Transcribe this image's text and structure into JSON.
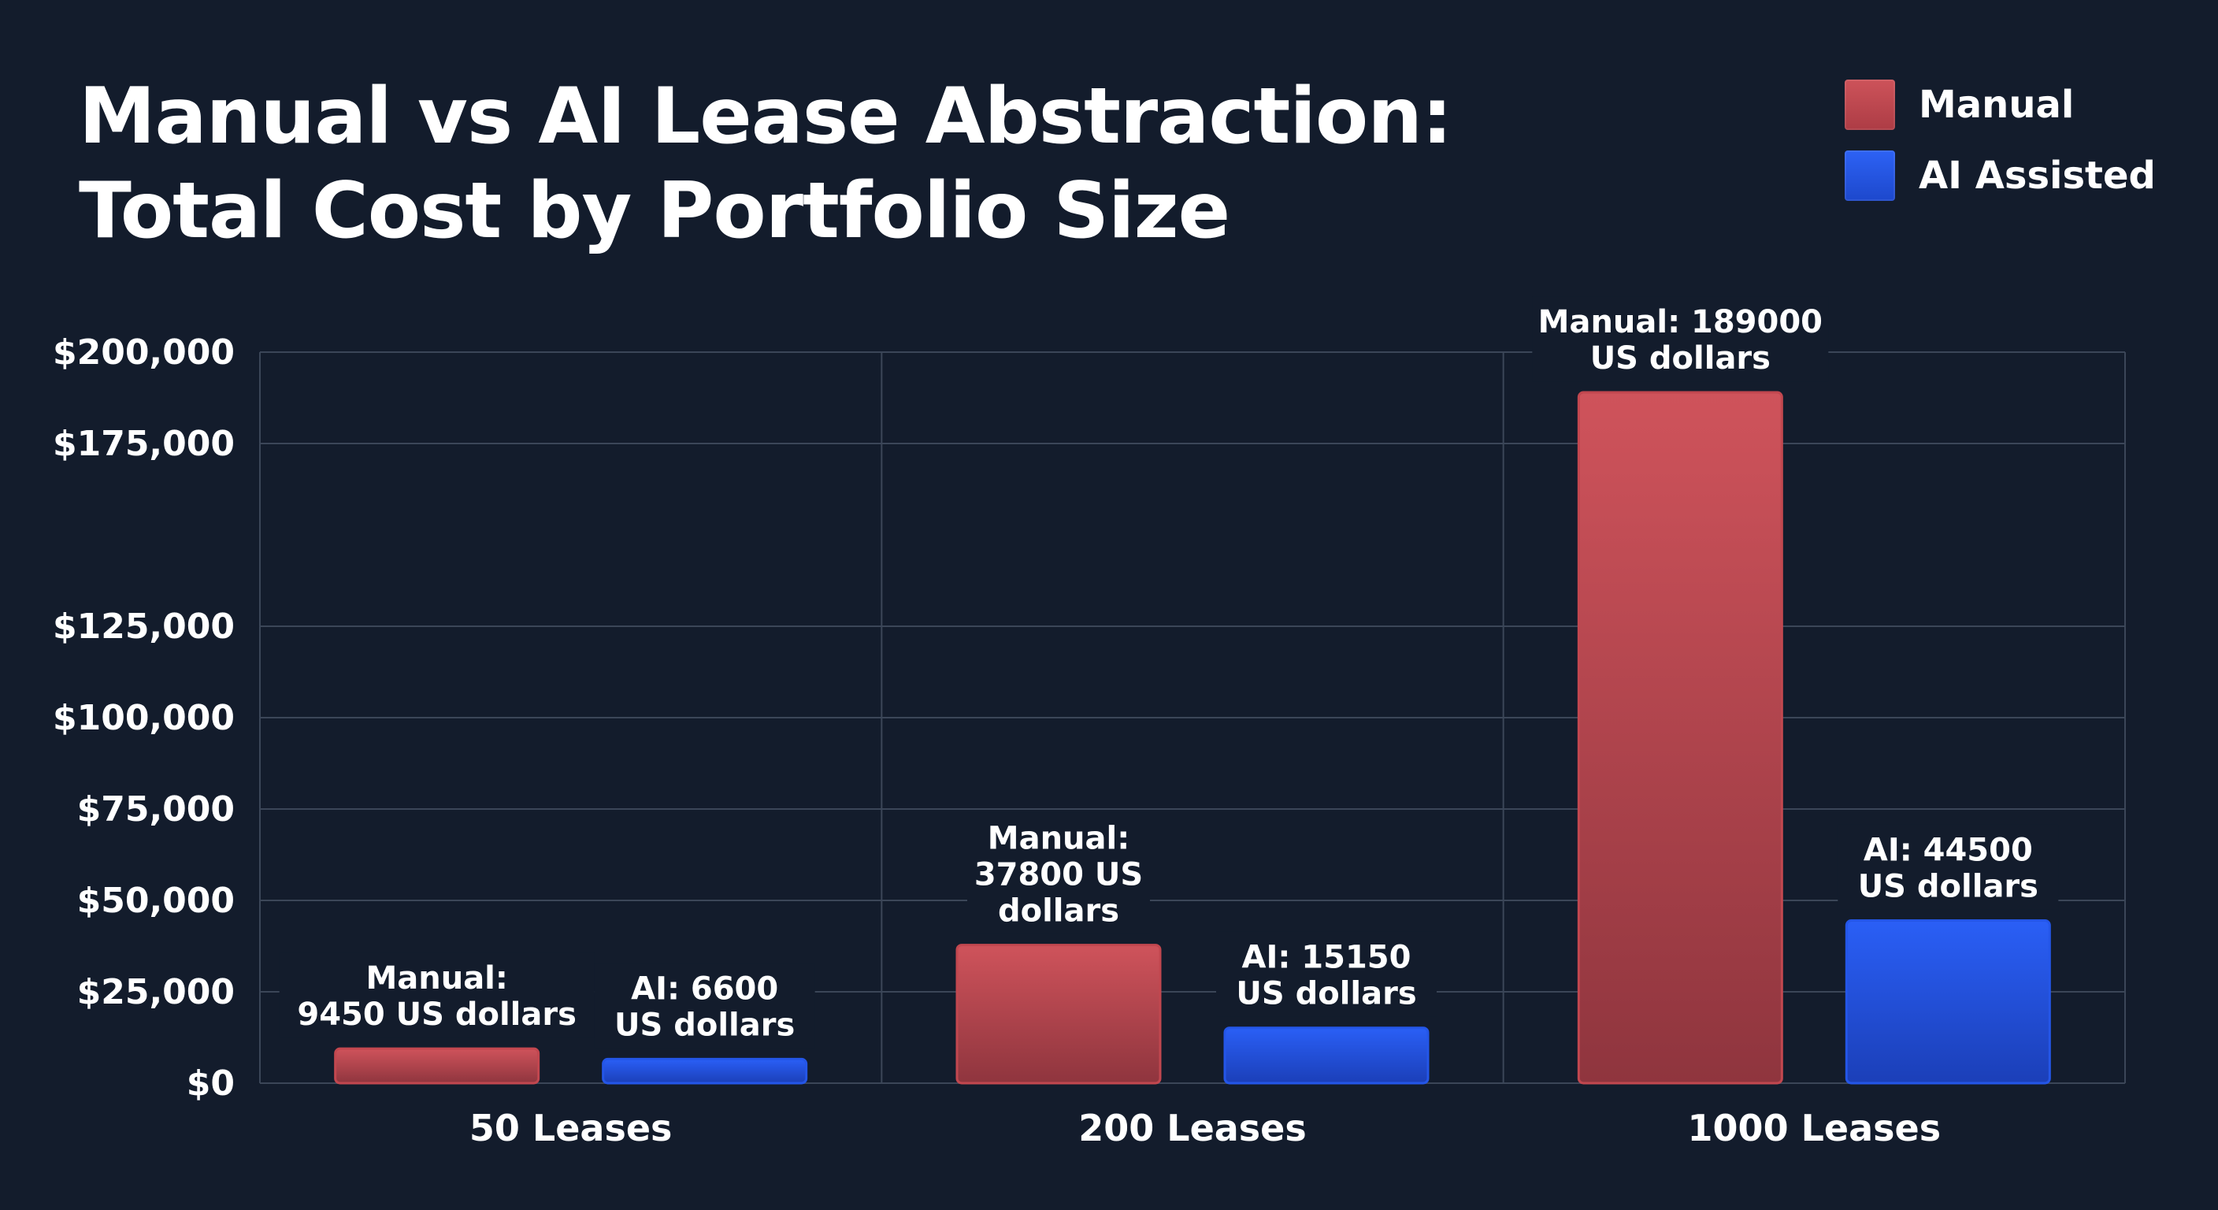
{
  "chart_data": {
    "type": "bar",
    "title": [
      "Manual vs AI Lease Abstraction:",
      "Total Cost by Portfolio Size"
    ],
    "categories": [
      "50 Leases",
      "200 Leases",
      "1000 Leases"
    ],
    "series": [
      {
        "name": "Manual",
        "color": "#c2474f",
        "values": [
          9450,
          37800,
          189000
        ],
        "labels": [
          [
            "Manual:",
            "9450 US dollars"
          ],
          [
            "Manual:",
            "37800 US",
            "dollars"
          ],
          [
            "Manual: 189000",
            "US dollars"
          ]
        ]
      },
      {
        "name": "AI Assisted",
        "color": "#2456e8",
        "values": [
          6600,
          15150,
          44500
        ],
        "labels": [
          [
            "AI: 6600",
            "US dollars"
          ],
          [
            "AI: 15150",
            "US dollars"
          ],
          [
            "AI: 44500",
            "US dollars"
          ]
        ]
      }
    ],
    "y_ticks": [
      {
        "value": 200000,
        "label": "$200,000"
      },
      {
        "value": 175000,
        "label": "$175,000"
      },
      {
        "value": 125000,
        "label": "$125,000"
      },
      {
        "value": 100000,
        "label": "$100,000"
      },
      {
        "value": 75000,
        "label": "$75,000"
      },
      {
        "value": 50000,
        "label": "$50,000"
      },
      {
        "value": 25000,
        "label": "$25,000"
      },
      {
        "value": 0,
        "label": "$0"
      }
    ],
    "ylim": [
      0,
      200000
    ],
    "xlabel": "",
    "ylabel": "",
    "grid": true,
    "legend_position": "top-right"
  }
}
